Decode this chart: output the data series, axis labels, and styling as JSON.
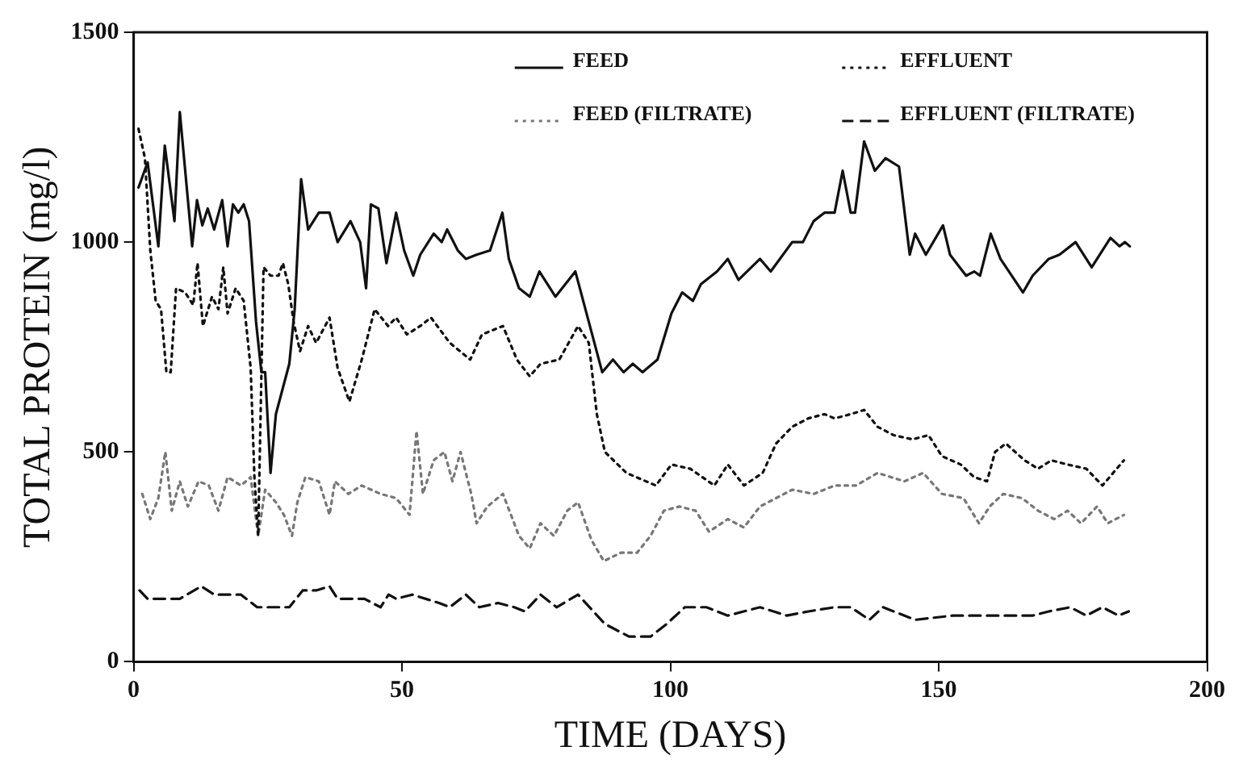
{
  "chart_data": {
    "type": "line",
    "xlabel": "TIME (DAYS)",
    "ylabel": "TOTAL PROTEIN (mg/l)",
    "xlim": [
      0,
      200
    ],
    "xticks": [
      0,
      50,
      100,
      150,
      200
    ],
    "ylim": [
      0,
      1500
    ],
    "yticks": [
      0,
      500,
      1000,
      1500
    ],
    "legend": "top right",
    "marker": "none",
    "series": [
      {
        "name": "FEED",
        "color": "#111111",
        "line_style": "solid",
        "x": [
          0.9,
          2.6,
          4.6,
          5.8,
          7.6,
          8.6,
          10.9,
          11.8,
          12.8,
          13.8,
          15,
          16.5,
          17.5,
          18.5,
          19.5,
          20.5,
          21.5,
          22.8,
          23.8,
          24.5,
          25.5,
          26.5,
          29,
          30,
          31.2,
          32.5,
          34.5,
          36.5,
          38,
          40.4,
          42.2,
          43.3,
          44.2,
          45.6,
          47.1,
          48.9,
          50.4,
          52.1,
          53.4,
          55.9,
          57.4,
          58.4,
          60.4,
          61.9,
          63.9,
          66.4,
          68.7,
          69.9,
          71.8,
          73.8,
          75.6,
          78.6,
          82.3,
          87.3,
          89.3,
          91.3,
          93,
          94.8,
          97.6,
          100.2,
          102.2,
          104.2,
          105.7,
          108.7,
          110.7,
          112.7,
          116.7,
          118.7,
          122.7,
          124.7,
          126.7,
          128.7,
          130.6,
          132.1,
          133.6,
          134.4,
          136.1,
          138.1,
          140.1,
          142.6,
          144.6,
          145.6,
          147.6,
          150.8,
          152.1,
          155.1,
          156.6,
          157.7,
          159.7,
          161.5,
          165.7,
          167.5,
          170.5,
          172.5,
          175.5,
          178.5,
          182,
          183.7,
          184.7,
          185.6
        ],
        "values": [
          1130,
          1190,
          990,
          1230,
          1050,
          1310,
          990,
          1100,
          1040,
          1080,
          1030,
          1100,
          990,
          1090,
          1070,
          1090,
          1050,
          810,
          690,
          690,
          450,
          590,
          710,
          840,
          1150,
          1030,
          1070,
          1070,
          1000,
          1050,
          1000,
          890,
          1090,
          1080,
          950,
          1070,
          980,
          920,
          970,
          1020,
          1000,
          1030,
          980,
          960,
          970,
          980,
          1070,
          960,
          890,
          870,
          930,
          870,
          930,
          690,
          720,
          690,
          710,
          690,
          720,
          830,
          880,
          860,
          900,
          930,
          960,
          910,
          960,
          930,
          1000,
          1000,
          1050,
          1070,
          1070,
          1170,
          1070,
          1070,
          1240,
          1170,
          1200,
          1180,
          970,
          1020,
          970,
          1040,
          970,
          920,
          930,
          920,
          1020,
          960,
          880,
          920,
          960,
          970,
          1000,
          940,
          1010,
          990,
          1000,
          990
        ]
      },
      {
        "name": "EFFLUENT",
        "color": "#111111",
        "line_style": "dotted",
        "x": [
          0.9,
          2.1,
          3.1,
          4.1,
          5.1,
          6.1,
          6.9,
          7.9,
          9.6,
          11.1,
          11.9,
          12.9,
          14.6,
          15.8,
          16.7,
          17.5,
          19,
          20.5,
          21.8,
          22.5,
          23.2,
          24.2,
          25.5,
          27,
          27.8,
          28.8,
          29.8,
          31,
          32.5,
          34,
          36.5,
          38,
          40.2,
          42.5,
          44.9,
          47.4,
          48.9,
          50.9,
          53.4,
          55.4,
          58.9,
          62.7,
          64.9,
          68.8,
          71.4,
          73.8,
          75.8,
          79.3,
          82.8,
          84.8,
          86.3,
          87.8,
          91.8,
          97.3,
          100.2,
          103.7,
          108.2,
          110.7,
          113.7,
          117.2,
          119.7,
          122.7,
          125.7,
          128.7,
          130.6,
          133.6,
          136.1,
          138.6,
          141.6,
          145.1,
          148.1,
          150.6,
          154.1,
          156.6,
          159,
          160.5,
          162.5,
          166,
          168.5,
          171,
          174,
          177.5,
          180.5,
          184.5
        ],
        "values": [
          1270,
          1200,
          980,
          860,
          840,
          690,
          690,
          890,
          880,
          850,
          950,
          800,
          870,
          840,
          940,
          830,
          890,
          860,
          700,
          440,
          300,
          940,
          920,
          920,
          950,
          900,
          810,
          740,
          800,
          760,
          820,
          700,
          620,
          720,
          840,
          800,
          820,
          780,
          800,
          820,
          760,
          720,
          780,
          800,
          720,
          680,
          710,
          720,
          800,
          760,
          590,
          500,
          450,
          420,
          470,
          460,
          420,
          470,
          420,
          450,
          520,
          560,
          580,
          590,
          580,
          590,
          600,
          560,
          540,
          530,
          540,
          490,
          470,
          440,
          430,
          500,
          520,
          480,
          460,
          480,
          470,
          460,
          420,
          480
        ]
      },
      {
        "name": "FEED (FILTRATE)",
        "color": "#777777",
        "line_style": "dotted",
        "x": [
          1.6,
          3.1,
          4.6,
          5.9,
          7.1,
          8.6,
          10.1,
          12.1,
          14,
          15.8,
          17.5,
          20,
          21.8,
          23.2,
          24.5,
          26.5,
          28,
          29.5,
          30.5,
          32,
          34.5,
          36.5,
          37.5,
          40,
          42.5,
          46,
          48.9,
          51.4,
          52.7,
          53.9,
          55.9,
          57.9,
          59.4,
          60.9,
          62.9,
          63.9,
          65.9,
          68.8,
          71.8,
          73.8,
          75.8,
          78.3,
          80.8,
          82.8,
          85.3,
          87.6,
          90.8,
          93.8,
          96.3,
          98.8,
          101.7,
          104.7,
          107.2,
          110.7,
          113.7,
          116.7,
          119.7,
          122.7,
          126.7,
          130.6,
          134.6,
          138.6,
          143.6,
          147.1,
          150.6,
          154.6,
          157.5,
          159.5,
          162,
          165.5,
          168.5,
          171.5,
          174,
          176.5,
          179.5,
          181.5,
          184.5
        ],
        "values": [
          400,
          340,
          390,
          500,
          360,
          430,
          370,
          430,
          420,
          360,
          440,
          420,
          440,
          300,
          410,
          380,
          350,
          300,
          380,
          440,
          430,
          350,
          430,
          400,
          420,
          400,
          390,
          350,
          550,
          400,
          480,
          500,
          430,
          500,
          400,
          330,
          370,
          400,
          300,
          270,
          330,
          300,
          360,
          380,
          290,
          240,
          260,
          260,
          300,
          360,
          370,
          360,
          310,
          340,
          320,
          370,
          390,
          410,
          400,
          420,
          420,
          450,
          430,
          450,
          400,
          390,
          330,
          370,
          400,
          390,
          360,
          340,
          360,
          330,
          370,
          330,
          350
        ]
      },
      {
        "name": "EFFLUENT (FILTRATE)",
        "color": "#111111",
        "line_style": "dashed",
        "x": [
          1.1,
          2.6,
          5.1,
          7.1,
          8.6,
          12.6,
          15,
          20,
          23,
          26,
          29,
          31.5,
          34,
          36.5,
          38,
          43,
          46,
          47.5,
          48.9,
          51.9,
          56.9,
          58.9,
          61.9,
          64.4,
          67.9,
          70.9,
          72.9,
          75.8,
          78.8,
          82.8,
          87.8,
          92.3,
          96.3,
          99.3,
          102.7,
          106.7,
          110.7,
          116.7,
          121.7,
          125.7,
          130.6,
          133.6,
          137.1,
          139.6,
          145.6,
          152.6,
          159.5,
          167.5,
          170.5,
          174.5,
          177.5,
          180.5,
          183.5,
          185.4
        ],
        "values": [
          170,
          150,
          150,
          150,
          150,
          180,
          160,
          160,
          130,
          130,
          130,
          170,
          170,
          180,
          150,
          150,
          130,
          160,
          150,
          160,
          140,
          130,
          160,
          130,
          140,
          130,
          120,
          160,
          130,
          160,
          90,
          60,
          60,
          90,
          130,
          130,
          110,
          130,
          110,
          120,
          130,
          130,
          100,
          130,
          100,
          110,
          110,
          110,
          120,
          130,
          110,
          130,
          110,
          120
        ]
      }
    ]
  }
}
